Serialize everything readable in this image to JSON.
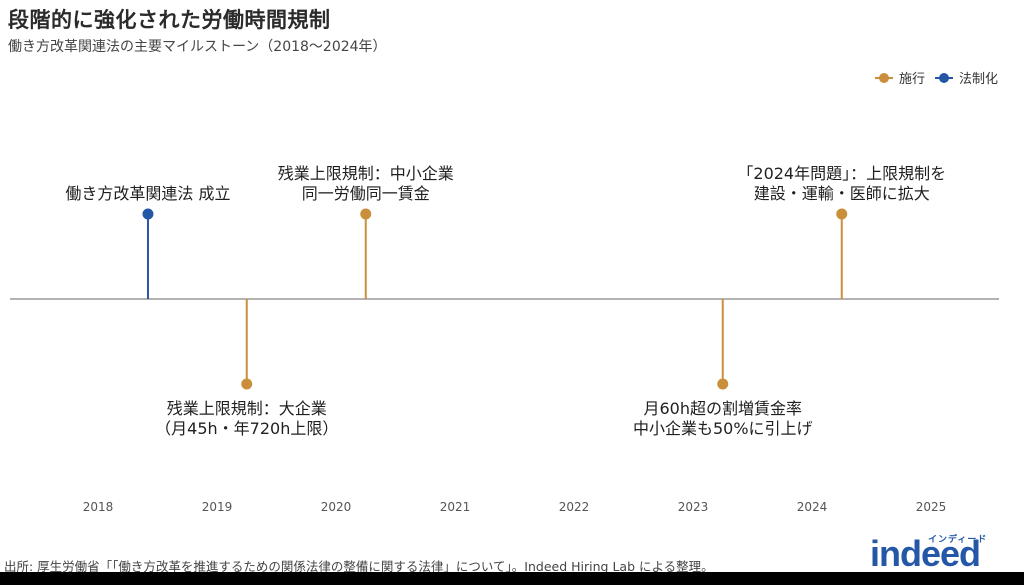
{
  "header": {
    "title": "段階的に強化された労働時間規制",
    "subtitle": "働き方改革関連法の主要マイルストーン（2018〜2024年）"
  },
  "legend": [
    {
      "label": "施行",
      "color": "#c98f3a"
    },
    {
      "label": "法制化",
      "color": "#2557a7"
    }
  ],
  "events": [
    {
      "id": "law-passed",
      "date": 2018.42,
      "type": "法制化",
      "color": "#2557a7",
      "side": "above",
      "lines": [
        "働き方改革関連法 成立"
      ]
    },
    {
      "id": "overtime-large",
      "date": 2019.25,
      "type": "施行",
      "color": "#c98f3a",
      "side": "below",
      "lines": [
        "残業上限規制：大企業",
        "（月45h・年720h上限）"
      ]
    },
    {
      "id": "overtime-sme",
      "date": 2020.25,
      "type": "施行",
      "color": "#c98f3a",
      "side": "above",
      "lines": [
        "残業上限規制：中小企業",
        "同一労働同一賃金"
      ]
    },
    {
      "id": "premium-rate",
      "date": 2023.25,
      "type": "施行",
      "color": "#c98f3a",
      "side": "below",
      "lines": [
        "月60h超の割増賃金率",
        "中小企業も50%に引上げ"
      ]
    },
    {
      "id": "problem-2024",
      "date": 2024.25,
      "type": "施行",
      "color": "#c98f3a",
      "side": "above",
      "lines": [
        "「2024年問題」：上限規制を",
        "建設・運輸・医師に拡大"
      ]
    }
  ],
  "axis": {
    "ticks": [
      "2018",
      "2019",
      "2020",
      "2021",
      "2022",
      "2023",
      "2024",
      "2025"
    ]
  },
  "footer": {
    "source": "出所: 厚生労働省「「働き方改革を推進するための関係法律の整備に関する法律」について」。Indeed Hiring Lab による整理。",
    "logo_text": "indeed",
    "logo_kana": "インディード"
  },
  "chart_data": {
    "type": "timeline",
    "title": "段階的に強化された労働時間規制",
    "subtitle": "働き方改革関連法の主要マイルストーン（2018〜2024年）",
    "xlabel": "",
    "ylabel": "",
    "xlim": [
      2017.3,
      2025.6
    ],
    "x_ticks": [
      2018,
      2019,
      2020,
      2021,
      2022,
      2023,
      2024,
      2025
    ],
    "grid": false,
    "legend_position": "top-right",
    "series": [
      {
        "name": "施行",
        "color": "#c98f3a",
        "points": [
          {
            "x": 2019.25,
            "label": "残業上限規制：大企業（月45h・年720h上限）",
            "side": "below"
          },
          {
            "x": 2020.25,
            "label": "残業上限規制：中小企業 同一労働同一賃金",
            "side": "above"
          },
          {
            "x": 2023.25,
            "label": "月60h超の割増賃金率 中小企業も50%に引上げ",
            "side": "below"
          },
          {
            "x": 2024.25,
            "label": "「2024年問題」：上限規制を建設・運輸・医師に拡大",
            "side": "above"
          }
        ]
      },
      {
        "name": "法制化",
        "color": "#2557a7",
        "points": [
          {
            "x": 2018.42,
            "label": "働き方改革関連法 成立",
            "side": "above"
          }
        ]
      }
    ]
  }
}
